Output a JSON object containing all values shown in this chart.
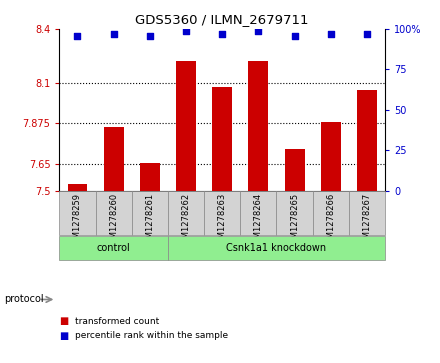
{
  "title": "GDS5360 / ILMN_2679711",
  "samples": [
    "GSM1278259",
    "GSM1278260",
    "GSM1278261",
    "GSM1278262",
    "GSM1278263",
    "GSM1278264",
    "GSM1278265",
    "GSM1278266",
    "GSM1278267"
  ],
  "transformed_count": [
    7.54,
    7.855,
    7.655,
    8.22,
    8.075,
    8.22,
    7.73,
    7.88,
    8.06
  ],
  "percentile_rank": [
    96,
    97,
    96,
    99,
    97,
    99,
    96,
    97,
    97
  ],
  "ylim_left": [
    7.5,
    8.4
  ],
  "ylim_right": [
    0,
    100
  ],
  "yticks_left": [
    7.5,
    7.65,
    7.875,
    8.1,
    8.4
  ],
  "yticks_right": [
    0,
    25,
    50,
    75,
    100
  ],
  "ytick_labels_left": [
    "7.5",
    "7.65",
    "7.875",
    "8.1",
    "8.4"
  ],
  "ytick_labels_right": [
    "0",
    "25",
    "50",
    "75",
    "100%"
  ],
  "group_control": {
    "label": "control",
    "start": 0,
    "end": 2
  },
  "group_knockdown": {
    "label": "Csnk1a1 knockdown",
    "start": 3,
    "end": 8
  },
  "protocol_label": "protocol",
  "bar_color": "#CC0000",
  "dot_color": "#0000CC",
  "grid_color": "#000000",
  "background_color": "#FFFFFF",
  "plot_bg_color": "#FFFFFF",
  "tick_label_color_left": "#CC0000",
  "tick_label_color_right": "#0000CC",
  "label_box_color": "#D3D3D3",
  "group_box_color": "#90EE90",
  "legend_items": [
    {
      "label": "transformed count",
      "color": "#CC0000"
    },
    {
      "label": "percentile rank within the sample",
      "color": "#0000CC"
    }
  ],
  "bar_width": 0.55
}
